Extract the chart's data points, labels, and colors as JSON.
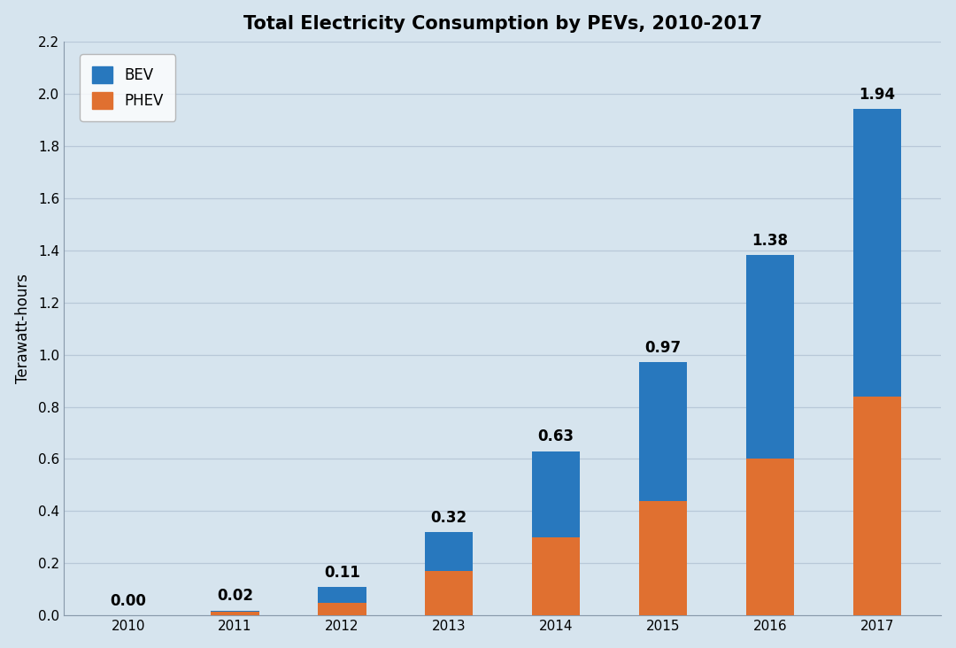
{
  "title": "Total Electricity Consumption by PEVs, 2010-2017",
  "ylabel": "Terawatt-hours",
  "years": [
    "2010",
    "2011",
    "2012",
    "2013",
    "2014",
    "2015",
    "2016",
    "2017"
  ],
  "phev_values": [
    0.003,
    0.015,
    0.05,
    0.17,
    0.3,
    0.44,
    0.6,
    0.84
  ],
  "bev_values": [
    0.0,
    0.005,
    0.06,
    0.15,
    0.33,
    0.53,
    0.78,
    1.1
  ],
  "totals": [
    0.0,
    0.02,
    0.11,
    0.32,
    0.63,
    0.97,
    1.38,
    1.94
  ],
  "bev_color": "#2878BE",
  "phev_color": "#E07030",
  "background_color": "#D6E4EE",
  "plot_bg_color": "#D6E4EE",
  "grid_color": "#B8C8D8",
  "ylim": [
    0.0,
    2.2
  ],
  "yticks": [
    0.0,
    0.2,
    0.4,
    0.6,
    0.8,
    1.0,
    1.2,
    1.4,
    1.6,
    1.8,
    2.0,
    2.2
  ],
  "title_fontsize": 15,
  "label_fontsize": 12,
  "tick_fontsize": 11,
  "annotation_fontsize": 12,
  "bar_width": 0.45
}
